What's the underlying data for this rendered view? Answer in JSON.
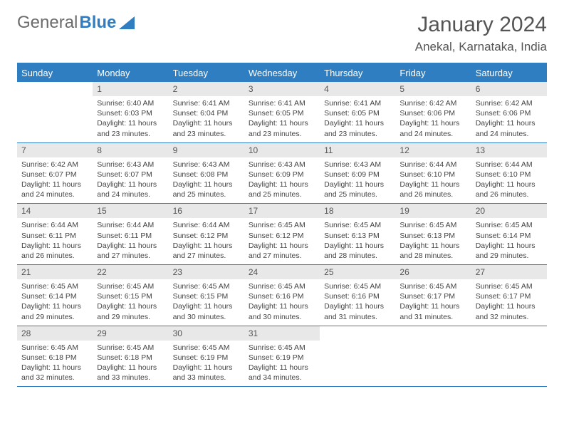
{
  "brand": {
    "part1": "General",
    "part2": "Blue"
  },
  "title": "January 2024",
  "location": "Anekal, Karnataka, India",
  "colors": {
    "accent": "#2f7ec2",
    "header_bg": "#e8e8e8",
    "text": "#444444",
    "bg": "#ffffff"
  },
  "weekdays": [
    "Sunday",
    "Monday",
    "Tuesday",
    "Wednesday",
    "Thursday",
    "Friday",
    "Saturday"
  ],
  "weeks": [
    [
      {
        "num": "",
        "text": "",
        "empty": true
      },
      {
        "num": "1",
        "text": "Sunrise: 6:40 AM\nSunset: 6:03 PM\nDaylight: 11 hours and 23 minutes."
      },
      {
        "num": "2",
        "text": "Sunrise: 6:41 AM\nSunset: 6:04 PM\nDaylight: 11 hours and 23 minutes."
      },
      {
        "num": "3",
        "text": "Sunrise: 6:41 AM\nSunset: 6:05 PM\nDaylight: 11 hours and 23 minutes."
      },
      {
        "num": "4",
        "text": "Sunrise: 6:41 AM\nSunset: 6:05 PM\nDaylight: 11 hours and 23 minutes."
      },
      {
        "num": "5",
        "text": "Sunrise: 6:42 AM\nSunset: 6:06 PM\nDaylight: 11 hours and 24 minutes."
      },
      {
        "num": "6",
        "text": "Sunrise: 6:42 AM\nSunset: 6:06 PM\nDaylight: 11 hours and 24 minutes."
      }
    ],
    [
      {
        "num": "7",
        "text": "Sunrise: 6:42 AM\nSunset: 6:07 PM\nDaylight: 11 hours and 24 minutes."
      },
      {
        "num": "8",
        "text": "Sunrise: 6:43 AM\nSunset: 6:07 PM\nDaylight: 11 hours and 24 minutes."
      },
      {
        "num": "9",
        "text": "Sunrise: 6:43 AM\nSunset: 6:08 PM\nDaylight: 11 hours and 25 minutes."
      },
      {
        "num": "10",
        "text": "Sunrise: 6:43 AM\nSunset: 6:09 PM\nDaylight: 11 hours and 25 minutes."
      },
      {
        "num": "11",
        "text": "Sunrise: 6:43 AM\nSunset: 6:09 PM\nDaylight: 11 hours and 25 minutes."
      },
      {
        "num": "12",
        "text": "Sunrise: 6:44 AM\nSunset: 6:10 PM\nDaylight: 11 hours and 26 minutes."
      },
      {
        "num": "13",
        "text": "Sunrise: 6:44 AM\nSunset: 6:10 PM\nDaylight: 11 hours and 26 minutes."
      }
    ],
    [
      {
        "num": "14",
        "text": "Sunrise: 6:44 AM\nSunset: 6:11 PM\nDaylight: 11 hours and 26 minutes."
      },
      {
        "num": "15",
        "text": "Sunrise: 6:44 AM\nSunset: 6:11 PM\nDaylight: 11 hours and 27 minutes."
      },
      {
        "num": "16",
        "text": "Sunrise: 6:44 AM\nSunset: 6:12 PM\nDaylight: 11 hours and 27 minutes."
      },
      {
        "num": "17",
        "text": "Sunrise: 6:45 AM\nSunset: 6:12 PM\nDaylight: 11 hours and 27 minutes."
      },
      {
        "num": "18",
        "text": "Sunrise: 6:45 AM\nSunset: 6:13 PM\nDaylight: 11 hours and 28 minutes."
      },
      {
        "num": "19",
        "text": "Sunrise: 6:45 AM\nSunset: 6:13 PM\nDaylight: 11 hours and 28 minutes."
      },
      {
        "num": "20",
        "text": "Sunrise: 6:45 AM\nSunset: 6:14 PM\nDaylight: 11 hours and 29 minutes."
      }
    ],
    [
      {
        "num": "21",
        "text": "Sunrise: 6:45 AM\nSunset: 6:14 PM\nDaylight: 11 hours and 29 minutes."
      },
      {
        "num": "22",
        "text": "Sunrise: 6:45 AM\nSunset: 6:15 PM\nDaylight: 11 hours and 29 minutes."
      },
      {
        "num": "23",
        "text": "Sunrise: 6:45 AM\nSunset: 6:15 PM\nDaylight: 11 hours and 30 minutes."
      },
      {
        "num": "24",
        "text": "Sunrise: 6:45 AM\nSunset: 6:16 PM\nDaylight: 11 hours and 30 minutes."
      },
      {
        "num": "25",
        "text": "Sunrise: 6:45 AM\nSunset: 6:16 PM\nDaylight: 11 hours and 31 minutes."
      },
      {
        "num": "26",
        "text": "Sunrise: 6:45 AM\nSunset: 6:17 PM\nDaylight: 11 hours and 31 minutes."
      },
      {
        "num": "27",
        "text": "Sunrise: 6:45 AM\nSunset: 6:17 PM\nDaylight: 11 hours and 32 minutes."
      }
    ],
    [
      {
        "num": "28",
        "text": "Sunrise: 6:45 AM\nSunset: 6:18 PM\nDaylight: 11 hours and 32 minutes."
      },
      {
        "num": "29",
        "text": "Sunrise: 6:45 AM\nSunset: 6:18 PM\nDaylight: 11 hours and 33 minutes."
      },
      {
        "num": "30",
        "text": "Sunrise: 6:45 AM\nSunset: 6:19 PM\nDaylight: 11 hours and 33 minutes."
      },
      {
        "num": "31",
        "text": "Sunrise: 6:45 AM\nSunset: 6:19 PM\nDaylight: 11 hours and 34 minutes."
      },
      {
        "num": "",
        "text": "",
        "empty": true
      },
      {
        "num": "",
        "text": "",
        "empty": true
      },
      {
        "num": "",
        "text": "",
        "empty": true
      }
    ]
  ]
}
